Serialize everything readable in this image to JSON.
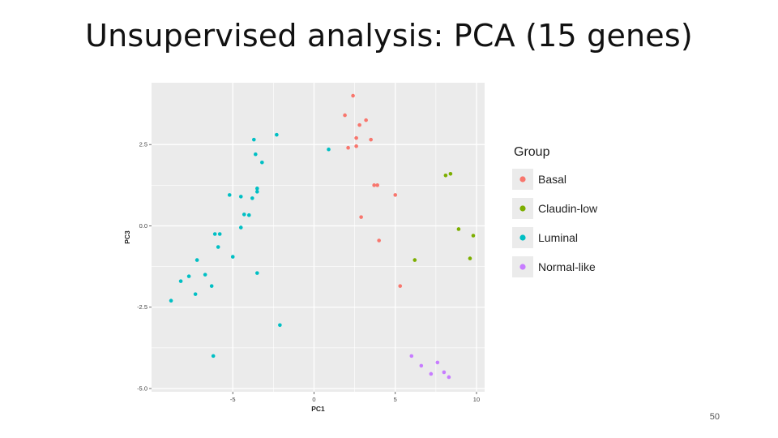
{
  "slide": {
    "title": "Unsupervised analysis: PCA (15 genes)",
    "page_number": "50"
  },
  "colors": {
    "panel_background": "#ebebeb",
    "grid": "#ffffff",
    "Basal": "#f8766d",
    "Claudin-low": "#7cae00",
    "Luminal": "#00bfc4",
    "Normal-like": "#c77cff"
  },
  "chart_data": {
    "type": "scatter",
    "xlabel": "PC1",
    "ylabel": "PC3",
    "xlim": [
      -10,
      10.5
    ],
    "ylim": [
      -5.1,
      4.4
    ],
    "x_ticks": [
      -5,
      0,
      5,
      10
    ],
    "x_tick_labels": [
      "-5",
      "0",
      "5",
      "10"
    ],
    "y_ticks": [
      -5,
      -2.5,
      0,
      2.5
    ],
    "y_tick_labels": [
      "-5.0",
      "-2.5",
      "0.0",
      "2.5"
    ],
    "grid": true,
    "legend": {
      "title": "Group",
      "placement": "right",
      "entries": [
        "Basal",
        "Claudin-low",
        "Luminal",
        "Normal-like"
      ]
    },
    "series": [
      {
        "name": "Basal",
        "points": [
          [
            2.4,
            4.0
          ],
          [
            1.9,
            3.4
          ],
          [
            3.2,
            3.25
          ],
          [
            2.8,
            3.1
          ],
          [
            3.5,
            2.65
          ],
          [
            2.6,
            2.7
          ],
          [
            2.1,
            2.4
          ],
          [
            2.6,
            2.45
          ],
          [
            3.7,
            1.25
          ],
          [
            3.9,
            1.25
          ],
          [
            5.0,
            0.95
          ],
          [
            2.9,
            0.27
          ],
          [
            4.0,
            -0.45
          ],
          [
            5.3,
            -1.85
          ]
        ]
      },
      {
        "name": "Claudin-low",
        "points": [
          [
            8.1,
            1.55
          ],
          [
            8.4,
            1.6
          ],
          [
            8.9,
            -0.1
          ],
          [
            9.8,
            -0.3
          ],
          [
            9.6,
            -1.0
          ],
          [
            6.2,
            -1.05
          ]
        ]
      },
      {
        "name": "Luminal",
        "points": [
          [
            -2.3,
            2.8
          ],
          [
            -3.7,
            2.65
          ],
          [
            -3.6,
            2.2
          ],
          [
            -3.2,
            1.95
          ],
          [
            0.9,
            2.35
          ],
          [
            -5.2,
            0.95
          ],
          [
            -4.5,
            0.9
          ],
          [
            -3.8,
            0.85
          ],
          [
            -3.5,
            1.15
          ],
          [
            -3.5,
            1.05
          ],
          [
            -4.3,
            0.35
          ],
          [
            -4.0,
            0.33
          ],
          [
            -4.5,
            -0.05
          ],
          [
            -6.1,
            -0.25
          ],
          [
            -5.8,
            -0.25
          ],
          [
            -5.9,
            -0.65
          ],
          [
            -5.0,
            -0.95
          ],
          [
            -7.2,
            -1.05
          ],
          [
            -7.7,
            -1.55
          ],
          [
            -8.2,
            -1.7
          ],
          [
            -6.7,
            -1.5
          ],
          [
            -3.5,
            -1.45
          ],
          [
            -6.3,
            -1.85
          ],
          [
            -7.3,
            -2.1
          ],
          [
            -8.8,
            -2.3
          ],
          [
            -2.1,
            -3.05
          ],
          [
            -6.2,
            -4.0
          ]
        ]
      },
      {
        "name": "Normal-like",
        "points": [
          [
            6.0,
            -4.0
          ],
          [
            6.6,
            -4.3
          ],
          [
            7.6,
            -4.2
          ],
          [
            7.2,
            -4.55
          ],
          [
            8.0,
            -4.5
          ],
          [
            8.3,
            -4.65
          ]
        ]
      }
    ]
  }
}
